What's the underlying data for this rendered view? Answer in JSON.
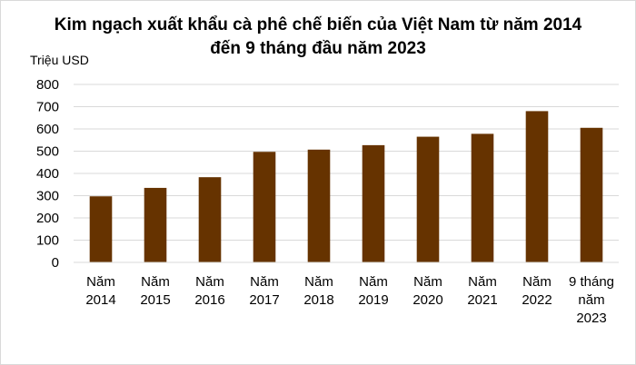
{
  "chart_data": {
    "type": "bar",
    "title_lines": [
      "Kim ngạch xuất khẩu cà phê chế biến của Việt Nam từ năm 2014",
      "đến 9 tháng đầu năm 2023"
    ],
    "ylabel": "Triệu USD",
    "ylim": [
      0,
      800
    ],
    "yticks": [
      "0",
      "100",
      "200",
      "300",
      "400",
      "500",
      "600",
      "700",
      "800"
    ],
    "grid": true,
    "legend": "none",
    "bar_color": "#663300",
    "gridline_color": "#d9d9d9",
    "categories": [
      [
        "Năm",
        "2014"
      ],
      [
        "Năm",
        "2015"
      ],
      [
        "Năm",
        "2016"
      ],
      [
        "Năm",
        "2017"
      ],
      [
        "Năm",
        "2018"
      ],
      [
        "Năm",
        "2019"
      ],
      [
        "Năm",
        "2020"
      ],
      [
        "Năm",
        "2021"
      ],
      [
        "Năm",
        "2022"
      ],
      [
        "9 tháng",
        "năm",
        "2023"
      ]
    ],
    "values": [
      297,
      335,
      383,
      497,
      507,
      527,
      565,
      578,
      680,
      605
    ]
  }
}
